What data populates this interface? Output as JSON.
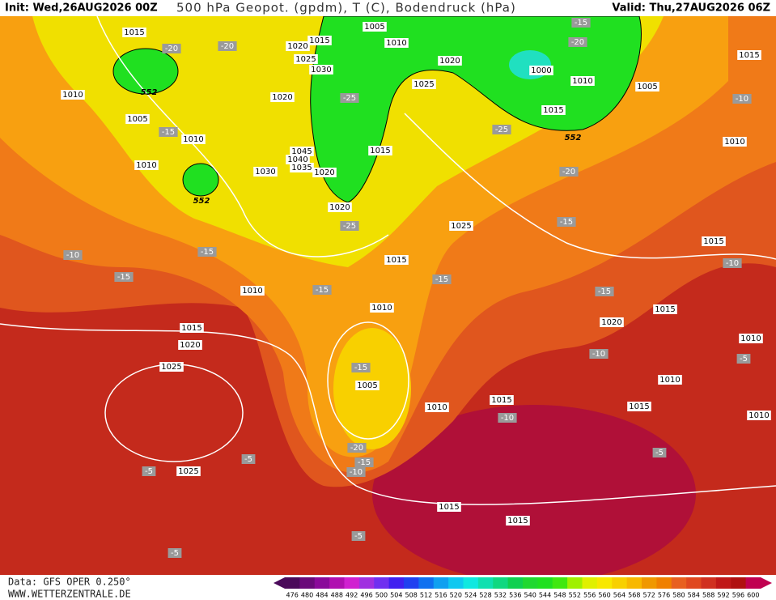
{
  "header": {
    "init": "Init: Wed,26AUG2026 00Z",
    "title": "500 hPa Geopot. (gpdm), T (C), Bodendruck (hPa)",
    "valid": "Valid: Thu,27AUG2026 06Z"
  },
  "footer": {
    "data_source": "Data: GFS OPER 0.250°",
    "website": "WWW.WETTERZENTRALE.DE"
  },
  "colorbar": {
    "labels": [
      476,
      480,
      484,
      488,
      492,
      496,
      500,
      504,
      508,
      512,
      516,
      520,
      524,
      528,
      532,
      536,
      540,
      544,
      548,
      552,
      556,
      560,
      564,
      568,
      572,
      576,
      580,
      584,
      588,
      592,
      596,
      600
    ],
    "colors": [
      "#4a0a5a",
      "#6a0a7a",
      "#8a0a9a",
      "#b010b0",
      "#d020d0",
      "#a030e0",
      "#7030f0",
      "#4020f0",
      "#2040f0",
      "#1070f0",
      "#10a0f0",
      "#10c8f0",
      "#10e8e0",
      "#10e0b0",
      "#10d880",
      "#10d050",
      "#20d830",
      "#20e020",
      "#40e810",
      "#a0f000",
      "#e0f000",
      "#f8e800",
      "#f8d000",
      "#f8b800",
      "#f09800",
      "#f08000",
      "#e86020",
      "#e04820",
      "#d03020",
      "#c01818",
      "#b01010",
      "#c00050"
    ]
  },
  "map": {
    "isobar_labels": [
      "1015",
      "1005",
      "1010",
      "1020",
      "1000",
      "1010",
      "1005",
      "1015",
      "1020",
      "1015",
      "1025",
      "1030",
      "1010",
      "1005",
      "1010",
      "1010",
      "1020",
      "1045",
      "1040",
      "1035",
      "1030",
      "1020",
      "1025",
      "1015",
      "1015",
      "1020",
      "1025",
      "1015",
      "1010",
      "1010",
      "1015",
      "1020",
      "1025",
      "1005",
      "1010",
      "1015",
      "1020",
      "1015",
      "1015",
      "1010",
      "1010",
      "1010",
      "1015",
      "1010",
      "1025",
      "1015",
      "1015"
    ],
    "isotherm_labels": [
      "-20",
      "-20",
      "-20",
      "-15",
      "-25",
      "-15",
      "-25",
      "-20",
      "-25",
      "-15",
      "-15",
      "-10",
      "-15",
      "-15",
      "-15",
      "-10",
      "-15",
      "-10",
      "-10",
      "-15",
      "-5",
      "-10",
      "-20",
      "-15",
      "-10",
      "-5",
      "-5",
      "-5",
      "-5",
      "-5"
    ],
    "height_labels": [
      "552",
      "552",
      "552"
    ]
  }
}
